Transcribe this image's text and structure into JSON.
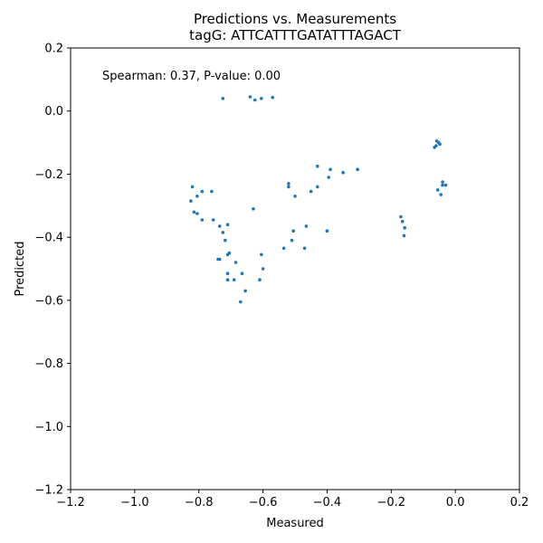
{
  "chart_data": {
    "type": "scatter",
    "title": "Predictions vs. Measurements",
    "subtitle": "tagG: ATTCATTTGATATTTAGACT",
    "xlabel": "Measured",
    "ylabel": "Predicted",
    "xlim": [
      -1.2,
      0.2
    ],
    "ylim": [
      -1.2,
      0.2
    ],
    "xticks": [
      "−1.2",
      "−1.0",
      "−0.8",
      "−0.6",
      "−0.4",
      "−0.2",
      "0.0",
      "0.2"
    ],
    "yticks": [
      "0.2",
      "0.0",
      "−0.2",
      "−0.4",
      "−0.6",
      "−0.8",
      "−1.0",
      "−1.2"
    ],
    "xtick_values": [
      -1.2,
      -1.0,
      -0.8,
      -0.6,
      -0.4,
      -0.2,
      0.0,
      0.2
    ],
    "ytick_values": [
      0.2,
      0.0,
      -0.2,
      -0.4,
      -0.6,
      -0.8,
      -1.0,
      -1.2
    ],
    "annotation": "Spearman: 0.37, P-value: 0.00",
    "grid": false,
    "point_color": "#1f77b4",
    "points": [
      [
        -0.725,
        0.04
      ],
      [
        -0.64,
        0.045
      ],
      [
        -0.625,
        0.035
      ],
      [
        -0.605,
        0.04
      ],
      [
        -0.57,
        0.043
      ],
      [
        -0.065,
        -0.115
      ],
      [
        -0.06,
        -0.11
      ],
      [
        -0.058,
        -0.095
      ],
      [
        -0.052,
        -0.1
      ],
      [
        -0.048,
        -0.105
      ],
      [
        -0.43,
        -0.175
      ],
      [
        -0.39,
        -0.185
      ],
      [
        -0.35,
        -0.195
      ],
      [
        -0.305,
        -0.185
      ],
      [
        -0.395,
        -0.21
      ],
      [
        -0.52,
        -0.23
      ],
      [
        -0.52,
        -0.24
      ],
      [
        -0.43,
        -0.24
      ],
      [
        -0.45,
        -0.255
      ],
      [
        -0.5,
        -0.27
      ],
      [
        -0.82,
        -0.24
      ],
      [
        -0.79,
        -0.255
      ],
      [
        -0.76,
        -0.255
      ],
      [
        -0.805,
        -0.27
      ],
      [
        -0.825,
        -0.285
      ],
      [
        -0.63,
        -0.31
      ],
      [
        -0.815,
        -0.32
      ],
      [
        -0.805,
        -0.325
      ],
      [
        -0.79,
        -0.345
      ],
      [
        -0.755,
        -0.345
      ],
      [
        -0.735,
        -0.365
      ],
      [
        -0.71,
        -0.36
      ],
      [
        -0.725,
        -0.385
      ],
      [
        -0.718,
        -0.41
      ],
      [
        -0.04,
        -0.225
      ],
      [
        -0.04,
        -0.235
      ],
      [
        -0.03,
        -0.235
      ],
      [
        -0.055,
        -0.25
      ],
      [
        -0.045,
        -0.265
      ],
      [
        -0.17,
        -0.335
      ],
      [
        -0.165,
        -0.35
      ],
      [
        -0.158,
        -0.37
      ],
      [
        -0.16,
        -0.395
      ],
      [
        -0.465,
        -0.365
      ],
      [
        -0.505,
        -0.38
      ],
      [
        -0.4,
        -0.38
      ],
      [
        -0.51,
        -0.41
      ],
      [
        -0.535,
        -0.435
      ],
      [
        -0.47,
        -0.435
      ],
      [
        -0.705,
        -0.45
      ],
      [
        -0.71,
        -0.455
      ],
      [
        -0.605,
        -0.455
      ],
      [
        -0.735,
        -0.47
      ],
      [
        -0.74,
        -0.47
      ],
      [
        -0.685,
        -0.48
      ],
      [
        -0.6,
        -0.5
      ],
      [
        -0.71,
        -0.515
      ],
      [
        -0.665,
        -0.515
      ],
      [
        -0.71,
        -0.535
      ],
      [
        -0.69,
        -0.535
      ],
      [
        -0.61,
        -0.535
      ],
      [
        -0.655,
        -0.57
      ],
      [
        -0.67,
        -0.605
      ]
    ]
  }
}
